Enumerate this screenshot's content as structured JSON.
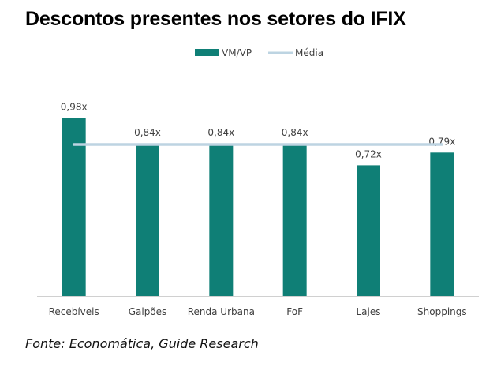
{
  "chart_data": {
    "type": "bar",
    "title": "Descontos presentes nos setores do IFIX",
    "categories": [
      "Recebíveis",
      "Galpões",
      "Renda Urbana",
      "FoF",
      "Lajes",
      "Shoppings"
    ],
    "series": [
      {
        "name": "VM/VP",
        "type": "bar",
        "values": [
          0.98,
          0.84,
          0.84,
          0.84,
          0.72,
          0.79
        ],
        "labels": [
          "0,98x",
          "0,84x",
          "0,84x",
          "0,84x",
          "0,72x",
          "0,79x"
        ],
        "color": "#0f7f76"
      },
      {
        "name": "Média",
        "type": "line",
        "values": [
          0.835,
          0.835,
          0.835,
          0.835,
          0.835,
          0.835
        ],
        "color": "#bdd4e2"
      }
    ],
    "ylim": [
      0,
      1
    ],
    "legend": "top-center",
    "grid": false,
    "source": "Fonte: Economática, Guide Research"
  }
}
